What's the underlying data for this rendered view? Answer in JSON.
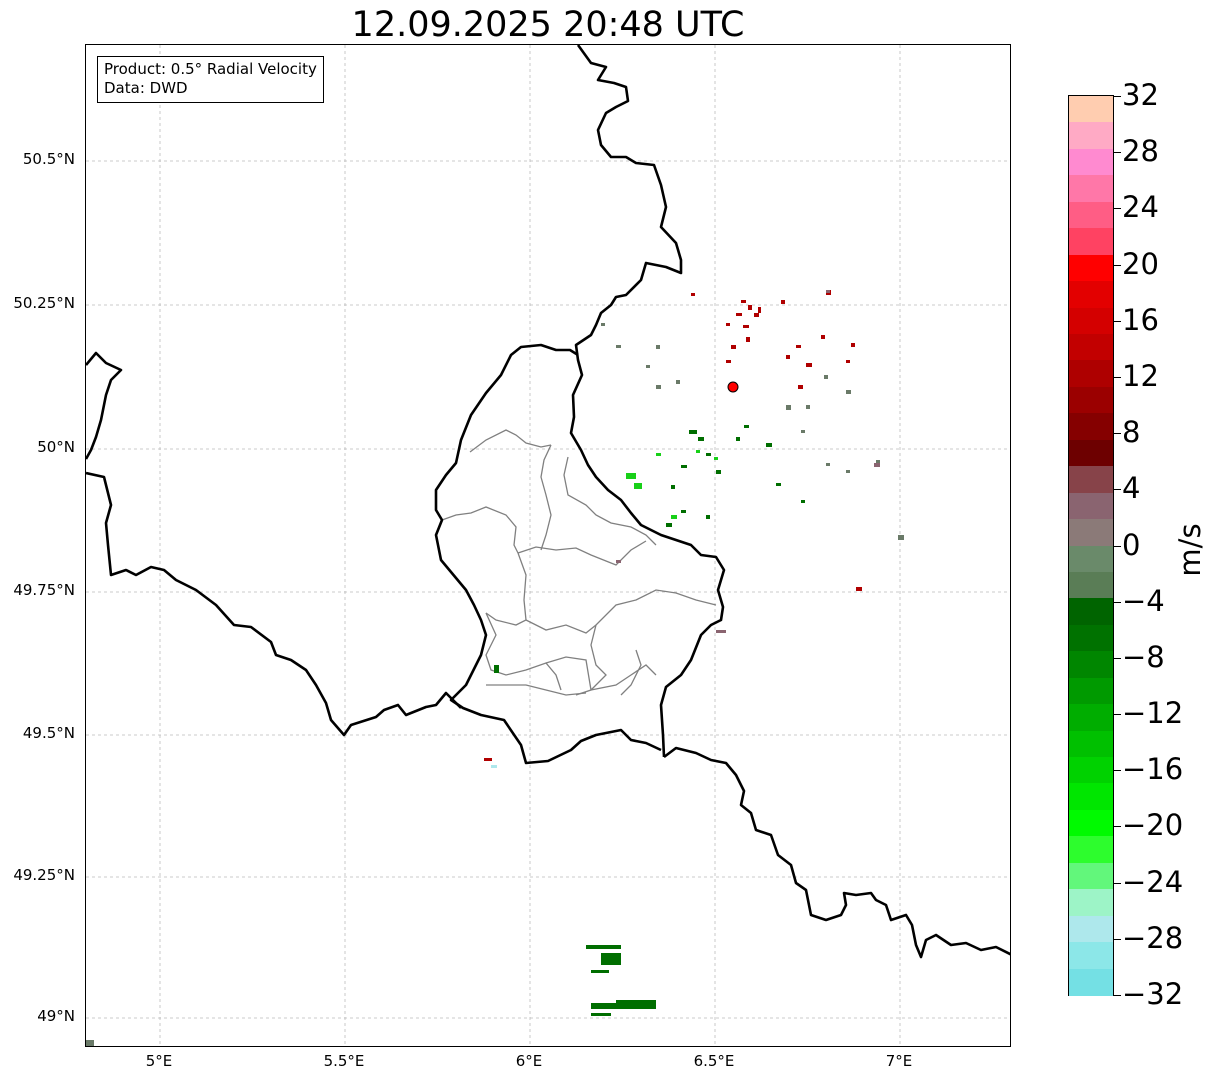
{
  "title": "12.09.2025 20:48 UTC",
  "info": {
    "product": "Product: 0.5° Radial Velocity",
    "source": "Data: DWD"
  },
  "axes": {
    "lon_ticks": [
      "5°E",
      "5.5°E",
      "6°E",
      "6.5°E",
      "7°E"
    ],
    "lat_ticks": [
      "50.5°N",
      "50.25°N",
      "50°N",
      "49.75°N",
      "49.5°N",
      "49.25°N",
      "49°N"
    ]
  },
  "colorbar": {
    "label": "m/s",
    "ticks": [
      "32",
      "28",
      "24",
      "20",
      "16",
      "12",
      "8",
      "4",
      "0",
      "−4",
      "−8",
      "−12",
      "−16",
      "−20",
      "−24",
      "−28",
      "−32"
    ],
    "colors": [
      "#ffcdb0",
      "#ffaac5",
      "#ff8ad0",
      "#ff77a8",
      "#ff5d85",
      "#ff4262",
      "#ff0000",
      "#e30000",
      "#d40000",
      "#c20000",
      "#ae0000",
      "#9b0000",
      "#850000",
      "#6d0000",
      "#874349",
      "#8a6470",
      "#8b7a78",
      "#6a8a6a",
      "#5a7d56",
      "#006400",
      "#007200",
      "#008600",
      "#009a00",
      "#00ad00",
      "#00c000",
      "#00d200",
      "#00e600",
      "#00fa00",
      "#2dfd2d",
      "#62f77b",
      "#9df4c7",
      "#aee8ec",
      "#8ce7e8",
      "#74e0e4"
    ]
  },
  "radar_site": {
    "lon": 6.548,
    "lat": 50.109
  },
  "chart_data": {
    "type": "heatmap",
    "title": "12.09.2025 20:48 UTC",
    "xlabel": "",
    "ylabel": "",
    "xlim": [
      4.8,
      7.3
    ],
    "ylim": [
      48.95,
      50.7
    ],
    "grid": true,
    "colorbar_label": "m/s",
    "colorbar_range": [
      -32,
      32
    ]
  }
}
